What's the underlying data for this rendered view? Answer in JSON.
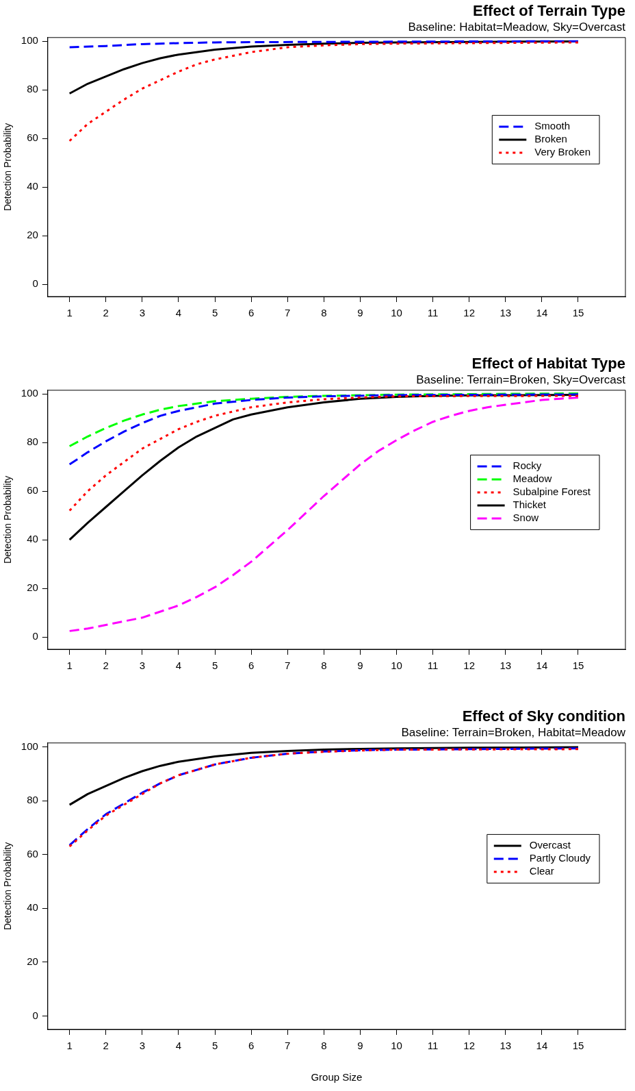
{
  "chart_data": [
    {
      "type": "line",
      "title": "Effect of Terrain Type",
      "subtitle": "Baseline: Habitat=Meadow, Sky=Overcast",
      "ylabel": "Detection Probability",
      "xlim": [
        0.4,
        16.3
      ],
      "xticks": [
        1,
        2,
        3,
        4,
        5,
        6,
        7,
        8,
        9,
        10,
        11,
        12,
        13,
        14,
        15
      ],
      "ylim": [
        -5,
        101.5
      ],
      "yticks": [
        0,
        20,
        40,
        60,
        80,
        100
      ],
      "legend": "right",
      "series": [
        {
          "name": "Smooth",
          "color": "#0000ff",
          "line_style": "dashed",
          "x": [
            1,
            2,
            3,
            4,
            5,
            6,
            8,
            10,
            15
          ],
          "values": [
            97.5,
            98,
            98.8,
            99.2,
            99.5,
            99.6,
            99.7,
            99.8,
            100
          ]
        },
        {
          "name": "Broken",
          "color": "#000000",
          "line_style": "solid",
          "x": [
            1,
            1.5,
            2,
            2.5,
            3,
            3.5,
            4,
            5,
            6,
            7,
            8,
            9,
            10,
            12,
            15
          ],
          "values": [
            78.5,
            82.5,
            85.5,
            88.5,
            91,
            93,
            94.5,
            96.5,
            97.8,
            98.5,
            99,
            99.3,
            99.5,
            99.7,
            99.9
          ]
        },
        {
          "name": "Very Broken",
          "color": "#ff0000",
          "line_style": "dotted",
          "x": [
            1,
            1.5,
            2,
            2.5,
            3,
            3.5,
            4,
            4.5,
            5,
            6,
            7,
            8,
            9,
            10,
            12,
            15
          ],
          "values": [
            59,
            66,
            71,
            76,
            80.5,
            84,
            87.5,
            90.5,
            92.5,
            95.5,
            97.5,
            98.3,
            98.8,
            99,
            99.2,
            99.5
          ]
        }
      ]
    },
    {
      "type": "line",
      "title": "Effect of Habitat Type",
      "subtitle": "Baseline: Terrain=Broken, Sky=Overcast",
      "ylabel": "Detection Probability",
      "xlim": [
        0.4,
        16.3
      ],
      "xticks": [
        1,
        2,
        3,
        4,
        5,
        6,
        7,
        8,
        9,
        10,
        11,
        12,
        13,
        14,
        15
      ],
      "ylim": [
        -5,
        101.5
      ],
      "yticks": [
        0,
        20,
        40,
        60,
        80,
        100
      ],
      "legend": "right",
      "series": [
        {
          "name": "Rocky",
          "color": "#0000ff",
          "line_style": "dashed",
          "x": [
            1,
            1.5,
            2,
            2.5,
            3,
            3.5,
            4,
            5,
            6,
            7,
            8,
            10,
            15
          ],
          "values": [
            71,
            76,
            80.5,
            84.5,
            88,
            91,
            93,
            96,
            97.5,
            98.5,
            99,
            99.5,
            99.8
          ]
        },
        {
          "name": "Meadow",
          "color": "#00ff00",
          "line_style": "dashed",
          "x": [
            1,
            1.5,
            2,
            2.5,
            3,
            3.5,
            4,
            5,
            6,
            7,
            8,
            10,
            15
          ],
          "values": [
            78.5,
            82.5,
            86,
            89,
            91.5,
            93.5,
            95,
            97,
            98,
            98.8,
            99.2,
            99.7,
            100.2
          ]
        },
        {
          "name": "Subalpine Forest",
          "color": "#ff0000",
          "line_style": "dotted",
          "x": [
            1,
            1.5,
            2,
            2.5,
            3,
            3.5,
            4,
            4.5,
            5,
            6,
            7,
            8,
            9,
            10,
            12,
            15
          ],
          "values": [
            52,
            60,
            66.5,
            72,
            77.5,
            81.5,
            85.5,
            88.5,
            91,
            94.5,
            96.5,
            97.8,
            98.5,
            99,
            99.1,
            99.2
          ]
        },
        {
          "name": "Thicket",
          "color": "#000000",
          "line_style": "solid",
          "x": [
            1,
            1.5,
            2,
            2.5,
            3,
            3.5,
            4,
            4.5,
            5,
            5.5,
            6,
            7,
            8,
            9,
            10,
            11,
            12,
            15
          ],
          "values": [
            40,
            47,
            53.5,
            60,
            66.5,
            72.5,
            78,
            82.5,
            86,
            89.5,
            91.5,
            94.5,
            96.5,
            98,
            98.8,
            99.2,
            99.4,
            99.6
          ]
        },
        {
          "name": "Snow",
          "color": "#ff00ff",
          "line_style": "dashed",
          "x": [
            1,
            1.5,
            2,
            2.5,
            3,
            3.5,
            4,
            4.5,
            5,
            5.5,
            6,
            6.5,
            7,
            7.5,
            8,
            8.5,
            9,
            9.5,
            10,
            10.5,
            11,
            11.5,
            12,
            12.5,
            13,
            13.5,
            14,
            14.5,
            15
          ],
          "values": [
            2.5,
            3.5,
            5,
            6.5,
            8,
            10.5,
            13,
            16.5,
            20.5,
            25.5,
            31,
            37.5,
            44,
            51,
            58,
            64.5,
            71,
            76.5,
            81,
            85,
            88.5,
            91,
            93,
            94.5,
            95.5,
            96.5,
            97.5,
            98,
            98.5
          ]
        }
      ]
    },
    {
      "type": "line",
      "title": "Effect of Sky condition",
      "subtitle": "Baseline: Terrain=Broken, Habitat=Meadow",
      "xlabel": "Group Size",
      "ylabel": "Detection Probability",
      "xlim": [
        0.4,
        16.3
      ],
      "xticks": [
        1,
        2,
        3,
        4,
        5,
        6,
        7,
        8,
        9,
        10,
        11,
        12,
        13,
        14,
        15
      ],
      "ylim": [
        -5,
        101.5
      ],
      "yticks": [
        0,
        20,
        40,
        60,
        80,
        100
      ],
      "legend": "right",
      "series": [
        {
          "name": "Overcast",
          "color": "#000000",
          "line_style": "solid",
          "x": [
            1,
            1.5,
            2,
            2.5,
            3,
            3.5,
            4,
            5,
            6,
            7,
            8,
            9,
            10,
            12,
            15
          ],
          "values": [
            78.5,
            82.5,
            85.5,
            88.5,
            91,
            93,
            94.5,
            96.5,
            97.8,
            98.5,
            99,
            99.3,
            99.5,
            99.7,
            99.9
          ]
        },
        {
          "name": "Partly Cloudy",
          "color": "#0000ff",
          "line_style": "dashed",
          "x": [
            1,
            1.5,
            2,
            2.5,
            3,
            3.5,
            4,
            4.5,
            5,
            6,
            7,
            8,
            9,
            10,
            12,
            15
          ],
          "values": [
            63.5,
            69.5,
            75,
            79,
            83,
            86.5,
            89.5,
            91.5,
            93.5,
            96,
            97.5,
            98.3,
            98.8,
            99,
            99.2,
            99.5
          ]
        },
        {
          "name": "Clear",
          "color": "#ff0000",
          "line_style": "dotted",
          "x": [
            1,
            1.5,
            2,
            2.5,
            3,
            3.5,
            4,
            4.5,
            5,
            6,
            7,
            8,
            9,
            10,
            12,
            15
          ],
          "values": [
            63,
            69,
            74.5,
            78.5,
            82.5,
            86.5,
            89.5,
            91.5,
            93.5,
            96,
            97.5,
            98.2,
            98.7,
            99,
            99.1,
            99.2
          ]
        }
      ]
    }
  ]
}
